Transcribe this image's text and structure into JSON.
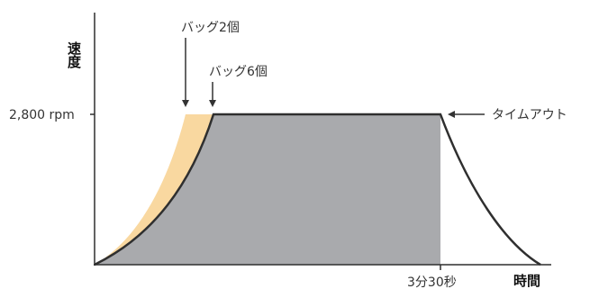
{
  "chart_data": {
    "type": "area",
    "ylabel": "速度",
    "xlabel": "時間",
    "y_tick_label": "2,800 rpm",
    "y_value": 2800,
    "x_tick_label": "3分30秒",
    "x_tick_seconds": 210,
    "annotations": {
      "bag2": "バッグ2個",
      "bag6": "バッグ6個",
      "timeout": "タイムアウト"
    },
    "series": [
      {
        "name": "バッグ2個",
        "color": "#f9d8a0"
      },
      {
        "name": "バッグ6個",
        "color": "#a9aaad"
      }
    ],
    "grid": false
  }
}
